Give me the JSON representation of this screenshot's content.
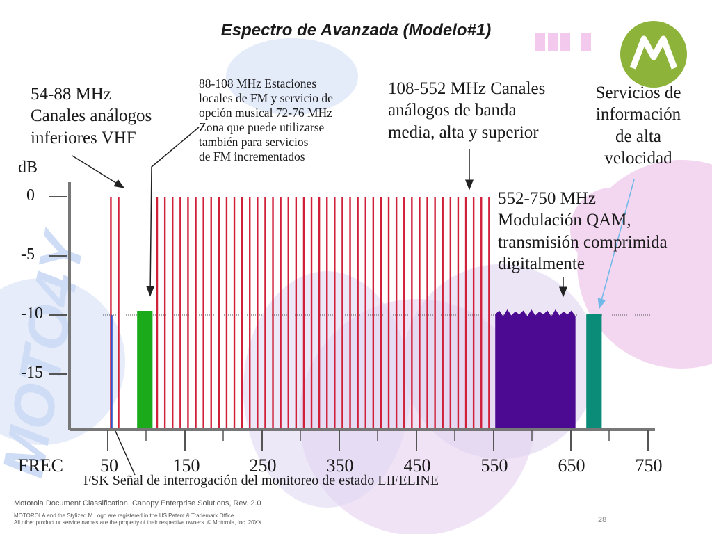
{
  "title": "Espectro de Avanzada (Modelo#1)",
  "callouts": {
    "c1": [
      "54-88 MHz",
      "Canales análogos",
      "inferiores VHF"
    ],
    "c2": [
      "88-108 MHz Estaciones",
      "locales de FM y servicio de",
      "opción musical 72-76 MHz",
      "Zona que puede utilizarse",
      "también para servicios",
      "de FM incrementados"
    ],
    "c3": [
      "108-552 MHz Canales",
      "análogos de banda",
      "media, alta y superior"
    ],
    "c4": [
      "Servicios de",
      "información",
      "de alta",
      "velocidad"
    ],
    "c5": [
      "552-750 MHz",
      "Modulación QAM,",
      "transmisión comprimida",
      "digitalmente"
    ]
  },
  "y_axis": {
    "label": "dB",
    "ticks": [
      "0",
      "-5",
      "-10",
      "-15"
    ]
  },
  "x_axis": {
    "label": "FREC",
    "ticks": [
      "50",
      "150",
      "250",
      "350",
      "450",
      "550",
      "650",
      "750"
    ]
  },
  "fsk_note": "FSK Señal de interrogación del monitoreo de estado LIFELINE",
  "footer": {
    "classification": "Motorola Document Classification, Canopy Enterprise Solutions, Rev. 2.0",
    "trademark_1": "MOTOROLA and the Stylized M Logo are registered in the US Patent & Trademark Office.",
    "trademark_2": "All other product or service names are the property of their respective owners. © Motorola, Inc. 20XX."
  },
  "page_number": "28",
  "colors": {
    "analog_channels": "#d0203a",
    "fm_band": "#1aaa1a",
    "qam_band": "#4b0a91",
    "high_speed_data": "#0a8c78",
    "fsk_line": "#3355cc",
    "logo": "#8db33a"
  },
  "chart_data": {
    "type": "bar",
    "xlabel": "FREC",
    "ylabel": "dB",
    "xlim": [
      50,
      750
    ],
    "ylim": [
      -20,
      0
    ],
    "series": [
      {
        "kind": "analog_channel",
        "freqs": [
          54,
          64,
          114,
          124,
          134,
          144,
          154,
          164,
          174,
          184,
          194,
          204,
          214,
          224,
          234,
          244,
          254,
          264,
          274,
          284,
          294,
          304,
          314,
          324,
          334,
          344,
          354,
          364,
          374,
          384,
          394,
          404,
          414,
          424,
          434,
          444,
          454,
          464,
          474,
          484,
          494,
          504,
          514,
          524,
          534,
          544
        ],
        "level": 0
      },
      {
        "kind": "fm_band",
        "range": [
          88,
          108
        ],
        "level": -10
      },
      {
        "kind": "qam_band",
        "range": [
          552,
          656
        ],
        "level": -10
      },
      {
        "kind": "high_speed_data",
        "range": [
          670,
          690
        ],
        "level": -10
      },
      {
        "kind": "fsk",
        "freq": 46,
        "level": -10
      }
    ]
  }
}
